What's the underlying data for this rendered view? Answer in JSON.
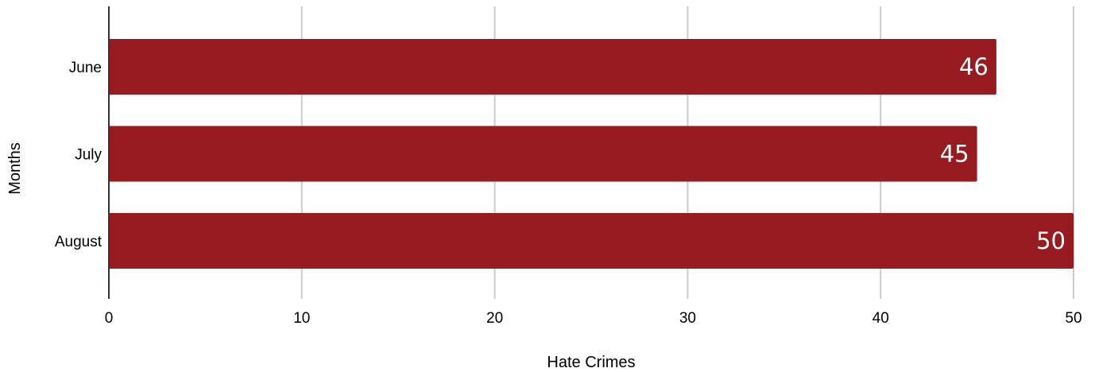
{
  "chart_data": {
    "type": "bar",
    "orientation": "horizontal",
    "categories": [
      "June",
      "July",
      "August"
    ],
    "series": [
      {
        "values": [
          46,
          45,
          50
        ],
        "color": "#971b20"
      }
    ],
    "data_labels": [
      "46",
      "45",
      "50"
    ],
    "xlabel": "Hate Crimes",
    "ylabel": "Months",
    "xlim": [
      0,
      50
    ],
    "x_ticks": [
      0,
      10,
      20,
      30,
      40,
      50
    ],
    "x_tick_labels": [
      "0",
      "10",
      "20",
      "30",
      "40",
      "50"
    ],
    "grid": "vertical",
    "legend": "none",
    "colors": {
      "bar": "#971b20",
      "grid": "#cccccc",
      "axis": "#333333",
      "data_label": "#ffffff"
    }
  }
}
